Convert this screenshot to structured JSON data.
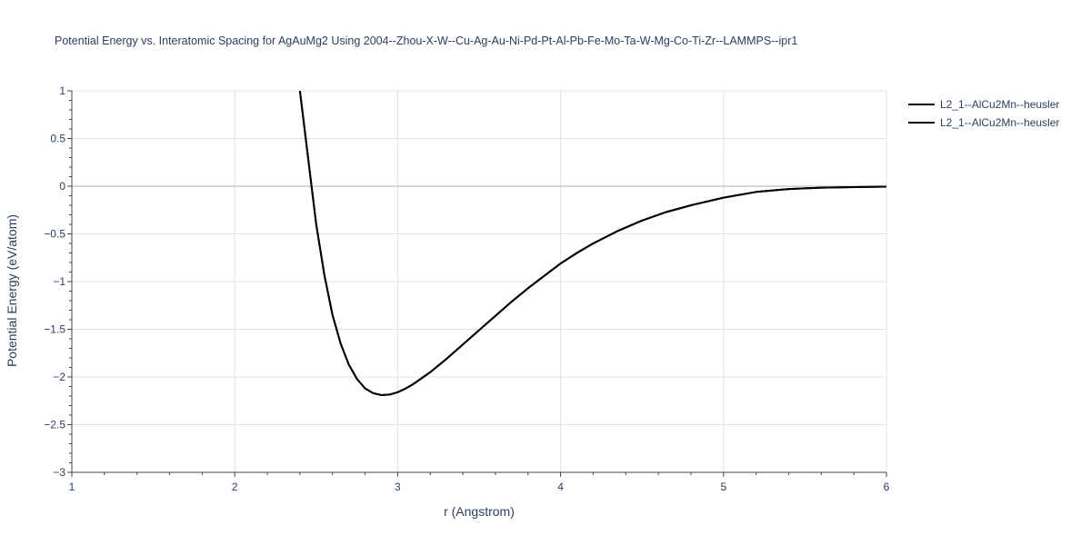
{
  "chart_data": {
    "type": "line",
    "title": "Potential Energy vs. Interatomic Spacing for AgAuMg2 Using 2004--Zhou-X-W--Cu-Ag-Au-Ni-Pd-Pt-Al-Pb-Fe-Mo-Ta-W-Mg-Co-Ti-Zr--LAMMPS--ipr1",
    "xlabel": "r (Angstrom)",
    "ylabel": "Potential Energy (eV/atom)",
    "xlim": [
      1,
      6
    ],
    "ylim": [
      -3,
      1
    ],
    "x_ticks": [
      1,
      2,
      3,
      4,
      5,
      6
    ],
    "y_ticks": [
      1,
      0.5,
      0,
      -0.5,
      -1,
      -1.5,
      -2,
      -2.5,
      -3
    ],
    "x_tick_labels": [
      "1",
      "2",
      "3",
      "4",
      "5",
      "6"
    ],
    "y_tick_labels": [
      "1",
      "0.5",
      "0",
      "−0.5",
      "−1",
      "−1.5",
      "−2",
      "−2.5",
      "−3"
    ],
    "grid": true,
    "legend_position": "top-right",
    "line_color": "#000000",
    "series": [
      {
        "name": "L2_1--AlCu2Mn--heusler",
        "x": [
          2.4,
          2.45,
          2.5,
          2.55,
          2.6,
          2.65,
          2.7,
          2.75,
          2.8,
          2.85,
          2.9,
          2.95,
          3.0,
          3.05,
          3.1,
          3.2,
          3.3,
          3.4,
          3.5,
          3.6,
          3.7,
          3.8,
          3.9,
          4.0,
          4.1,
          4.2,
          4.35,
          4.5,
          4.65,
          4.8,
          5.0,
          5.2,
          5.4,
          5.6,
          5.8,
          6.0
        ],
        "y": [
          1.0,
          0.3,
          -0.4,
          -0.93,
          -1.35,
          -1.65,
          -1.87,
          -2.02,
          -2.12,
          -2.17,
          -2.19,
          -2.185,
          -2.16,
          -2.12,
          -2.07,
          -1.95,
          -1.81,
          -1.66,
          -1.51,
          -1.36,
          -1.21,
          -1.07,
          -0.94,
          -0.81,
          -0.7,
          -0.6,
          -0.47,
          -0.36,
          -0.27,
          -0.2,
          -0.12,
          -0.06,
          -0.03,
          -0.015,
          -0.01,
          -0.005
        ]
      },
      {
        "name": "L2_1--AlCu2Mn--heusler",
        "x": [
          2.4,
          2.45,
          2.5,
          2.55,
          2.6,
          2.65,
          2.7,
          2.75,
          2.8,
          2.85,
          2.9,
          2.95,
          3.0,
          3.05,
          3.1,
          3.2,
          3.3,
          3.4,
          3.5,
          3.6,
          3.7,
          3.8,
          3.9,
          4.0,
          4.1,
          4.2,
          4.35,
          4.5,
          4.65,
          4.8,
          5.0,
          5.2,
          5.4,
          5.6,
          5.8,
          6.0
        ],
        "y": [
          1.0,
          0.3,
          -0.4,
          -0.93,
          -1.35,
          -1.65,
          -1.87,
          -2.02,
          -2.12,
          -2.17,
          -2.19,
          -2.185,
          -2.16,
          -2.12,
          -2.07,
          -1.95,
          -1.81,
          -1.66,
          -1.51,
          -1.36,
          -1.21,
          -1.07,
          -0.94,
          -0.81,
          -0.7,
          -0.6,
          -0.47,
          -0.36,
          -0.27,
          -0.2,
          -0.12,
          -0.06,
          -0.03,
          -0.015,
          -0.01,
          -0.005
        ]
      }
    ]
  }
}
